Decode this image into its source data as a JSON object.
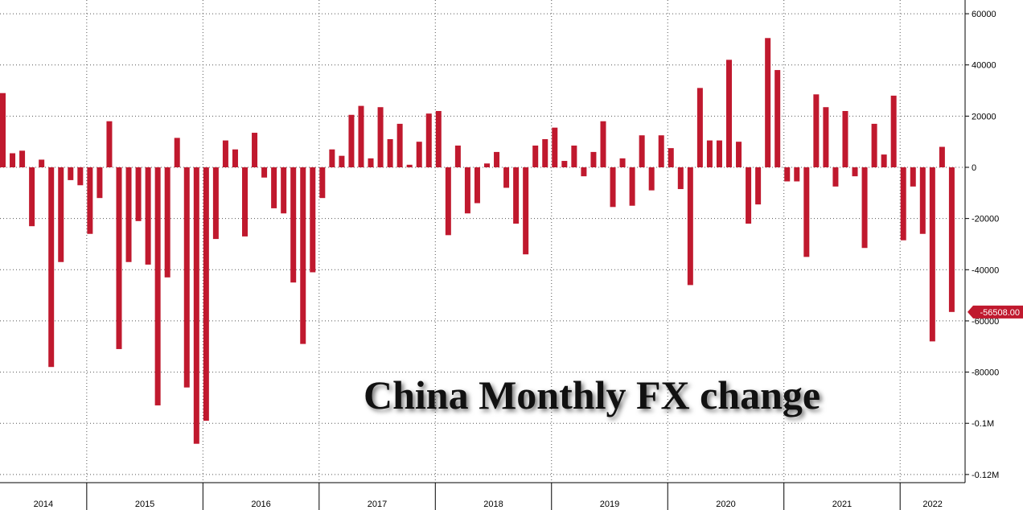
{
  "chart_data": {
    "type": "bar",
    "title": "China Monthly FX change",
    "ylim": [
      -120000,
      60000
    ],
    "y_ticks": [
      60000,
      40000,
      20000,
      0,
      -20000,
      -40000,
      -60000,
      -80000,
      -100000,
      -120000
    ],
    "y_tick_labels": [
      "60000",
      "40000",
      "20000",
      "0",
      "-20000",
      "-40000",
      "-60000",
      "-80000",
      "-0.1M",
      "-0.12M"
    ],
    "y_axis_position": "right",
    "grid": true,
    "years": [
      "2014",
      "2015",
      "2016",
      "2017",
      "2018",
      "2019",
      "2020",
      "2021",
      "2022"
    ],
    "start_month": "2014-04",
    "series": [
      {
        "color": "#c0192e",
        "values": [
          29000,
          5500,
          6500,
          -23000,
          3000,
          -78000,
          -37000,
          -5000,
          -7000,
          -26000,
          -12000,
          18000,
          -71000,
          -37000,
          -21000,
          -38000,
          -93000,
          -43000,
          11500,
          -86000,
          -108000,
          -99000,
          -28000,
          10500,
          7000,
          -27000,
          13500,
          -4000,
          -16000,
          -18000,
          -45000,
          -69000,
          -41000,
          -12000,
          7000,
          4500,
          20500,
          24000,
          3500,
          23500,
          11000,
          17000,
          1000,
          10000,
          21000,
          22000,
          -26500,
          8500,
          -18000,
          -14000,
          1500,
          6000,
          -8000,
          -22000,
          -34000,
          8500,
          11000,
          15500,
          2500,
          8500,
          -3500,
          6000,
          18000,
          -15500,
          3500,
          -15000,
          12500,
          -9000,
          12500,
          7500,
          -8500,
          -46000,
          31000,
          10500,
          10500,
          42000,
          10000,
          -22000,
          -14500,
          50500,
          38000,
          -5500,
          -5500,
          -35000,
          28500,
          23500,
          -7500,
          22000,
          -3500,
          -31500,
          17000,
          5000,
          28000,
          -28500,
          -7500,
          -26000,
          -68000,
          8000,
          -56508
        ]
      }
    ],
    "last_value_label": "-56508.00"
  }
}
